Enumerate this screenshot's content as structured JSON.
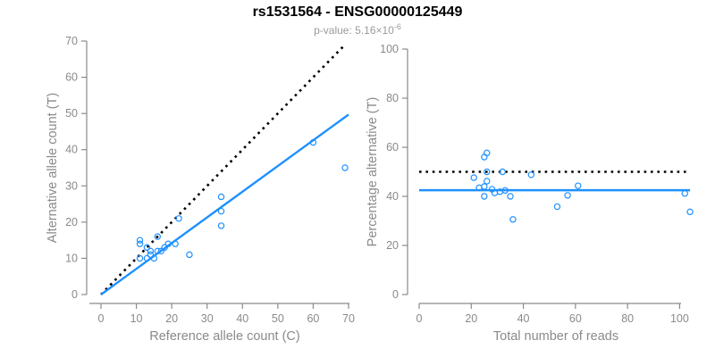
{
  "header": {
    "title": "rs1531564 - ENSG00000125449",
    "subtitle_prefix": "p-value: ",
    "subtitle_mantissa": "5.16×10",
    "subtitle_exponent": "-6"
  },
  "colors": {
    "accent_blue": "#1E90FF",
    "axis_gray": "#8a8a8a",
    "dotted_black": "#000000",
    "subtitle_gray": "#9b9b9b"
  },
  "chart_data": [
    {
      "type": "scatter",
      "panel": "allele-counts",
      "xlabel": "Reference allele count (C)",
      "ylabel": "Alternative allele count (T)",
      "xlim": [
        0,
        70
      ],
      "ylim": [
        0,
        70
      ],
      "xticks": [
        0,
        10,
        20,
        30,
        40,
        50,
        60,
        70
      ],
      "yticks": [
        0,
        10,
        20,
        30,
        40,
        50,
        60,
        70
      ],
      "grid": false,
      "legend": false,
      "points": [
        [
          11,
          15
        ],
        [
          11,
          14
        ],
        [
          13,
          13
        ],
        [
          16,
          16
        ],
        [
          11,
          10
        ],
        [
          14,
          12
        ],
        [
          13,
          10
        ],
        [
          14,
          11
        ],
        [
          16,
          12
        ],
        [
          17,
          12
        ],
        [
          18,
          13
        ],
        [
          19,
          14
        ],
        [
          15,
          10
        ],
        [
          21,
          14
        ],
        [
          22,
          21
        ],
        [
          25,
          11
        ],
        [
          34,
          19
        ],
        [
          34,
          23
        ],
        [
          34,
          27
        ],
        [
          60,
          42
        ],
        [
          69,
          35
        ]
      ],
      "lines": [
        {
          "name": "identity-line",
          "style": "dotted",
          "color": "#000000",
          "x1": 0,
          "y1": 0,
          "x2": 69,
          "y2": 69
        },
        {
          "name": "fit-line",
          "style": "solid",
          "color": "#1E90FF",
          "x1": 0,
          "y1": 0,
          "x2": 70,
          "y2": 49.7
        }
      ]
    },
    {
      "type": "scatter",
      "panel": "percentage-alternative",
      "xlabel": "Total number of reads",
      "ylabel": "Percentage alternative (T)",
      "xlim": [
        0,
        105
      ],
      "ylim": [
        0,
        100
      ],
      "xticks": [
        0,
        20,
        40,
        60,
        80,
        100
      ],
      "yticks": [
        0,
        20,
        40,
        60,
        80,
        100
      ],
      "grid": false,
      "legend": false,
      "points": [
        [
          26,
          57.7
        ],
        [
          25,
          56.0
        ],
        [
          26,
          50.0
        ],
        [
          32,
          50.0
        ],
        [
          21,
          47.6
        ],
        [
          26,
          46.2
        ],
        [
          23,
          43.5
        ],
        [
          25,
          44.0
        ],
        [
          28,
          42.9
        ],
        [
          29,
          41.4
        ],
        [
          31,
          41.9
        ],
        [
          33,
          42.4
        ],
        [
          25,
          40.0
        ],
        [
          35,
          40.0
        ],
        [
          43,
          48.8
        ],
        [
          36,
          30.6
        ],
        [
          53,
          35.8
        ],
        [
          57,
          40.4
        ],
        [
          61,
          44.3
        ],
        [
          102,
          41.2
        ],
        [
          104,
          33.7
        ]
      ],
      "lines": [
        {
          "name": "null-50pct-line",
          "style": "dotted",
          "color": "#000000",
          "x1": 0,
          "y1": 50,
          "x2": 103,
          "y2": 50
        },
        {
          "name": "mean-pct-line",
          "style": "solid",
          "color": "#1E90FF",
          "x1": 0,
          "y1": 42.5,
          "x2": 104,
          "y2": 42.5
        }
      ]
    }
  ]
}
